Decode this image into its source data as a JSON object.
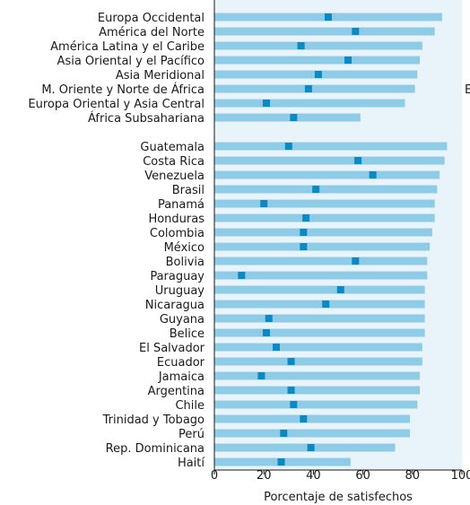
{
  "chart_data": {
    "type": "bar",
    "xlabel": "Porcentaje de satisfechos",
    "xlim": [
      0,
      100
    ],
    "xticks": [
      "0",
      "20",
      "40",
      "60",
      "80",
      "100"
    ],
    "grid": false,
    "panel_colors": {
      "background": "#e8f4fa",
      "range_bar": "#8ecbe6",
      "marker": "#0a8ac4"
    },
    "series": [
      {
        "name": "",
        "description_unprinted": true
      }
    ],
    "groups": [
      {
        "rows": [
          {
            "label": "Europa Occidental",
            "range_end": 92,
            "marker": 46
          },
          {
            "label": "América del Norte",
            "range_end": 89,
            "marker": 57
          },
          {
            "label": "América Latina y el Caribe",
            "range_end": 84,
            "marker": 35
          },
          {
            "label": "Asia Oriental y el Pacífico",
            "range_end": 83,
            "marker": 54
          },
          {
            "label": "Asia Meridional",
            "range_end": 82,
            "marker": 42
          },
          {
            "label": "M. Oriente y Norte de África",
            "range_end": 81,
            "marker": 38
          },
          {
            "label": "Europa Oriental y Asia Central",
            "range_end": 77,
            "marker": 21
          },
          {
            "label": "África Subsahariana",
            "range_end": 59,
            "marker": 32
          }
        ]
      },
      {
        "rows": [
          {
            "label": "Guatemala",
            "range_end": 94,
            "marker": 30
          },
          {
            "label": "Costa Rica",
            "range_end": 93,
            "marker": 58
          },
          {
            "label": "Venezuela",
            "range_end": 91,
            "marker": 64
          },
          {
            "label": "Brasil",
            "range_end": 90,
            "marker": 41
          },
          {
            "label": "Panamá",
            "range_end": 89,
            "marker": 20
          },
          {
            "label": "Honduras",
            "range_end": 89,
            "marker": 37
          },
          {
            "label": "Colombia",
            "range_end": 88,
            "marker": 36
          },
          {
            "label": "México",
            "range_end": 87,
            "marker": 36
          },
          {
            "label": "Bolivia",
            "range_end": 86,
            "marker": 57
          },
          {
            "label": "Paraguay",
            "range_end": 86,
            "marker": 11
          },
          {
            "label": "Uruguay",
            "range_end": 85,
            "marker": 51
          },
          {
            "label": "Nicaragua",
            "range_end": 85,
            "marker": 45
          },
          {
            "label": "Guyana",
            "range_end": 85,
            "marker": 22
          },
          {
            "label": "Belice",
            "range_end": 85,
            "marker": 21
          },
          {
            "label": "El Salvador",
            "range_end": 84,
            "marker": 25
          },
          {
            "label": "Ecuador",
            "range_end": 84,
            "marker": 31
          },
          {
            "label": "Jamaica",
            "range_end": 83,
            "marker": 19
          },
          {
            "label": "Argentina",
            "range_end": 83,
            "marker": 31
          },
          {
            "label": "Chile",
            "range_end": 82,
            "marker": 32
          },
          {
            "label": "Trinidad y Tobago",
            "range_end": 79,
            "marker": 36
          },
          {
            "label": "Perú",
            "range_end": 79,
            "marker": 28
          },
          {
            "label": "Rep. Dominicana",
            "range_end": 73,
            "marker": 39
          },
          {
            "label": "Haití",
            "range_end": 55,
            "marker": 27
          }
        ]
      }
    ],
    "cut_off_text": "E"
  }
}
